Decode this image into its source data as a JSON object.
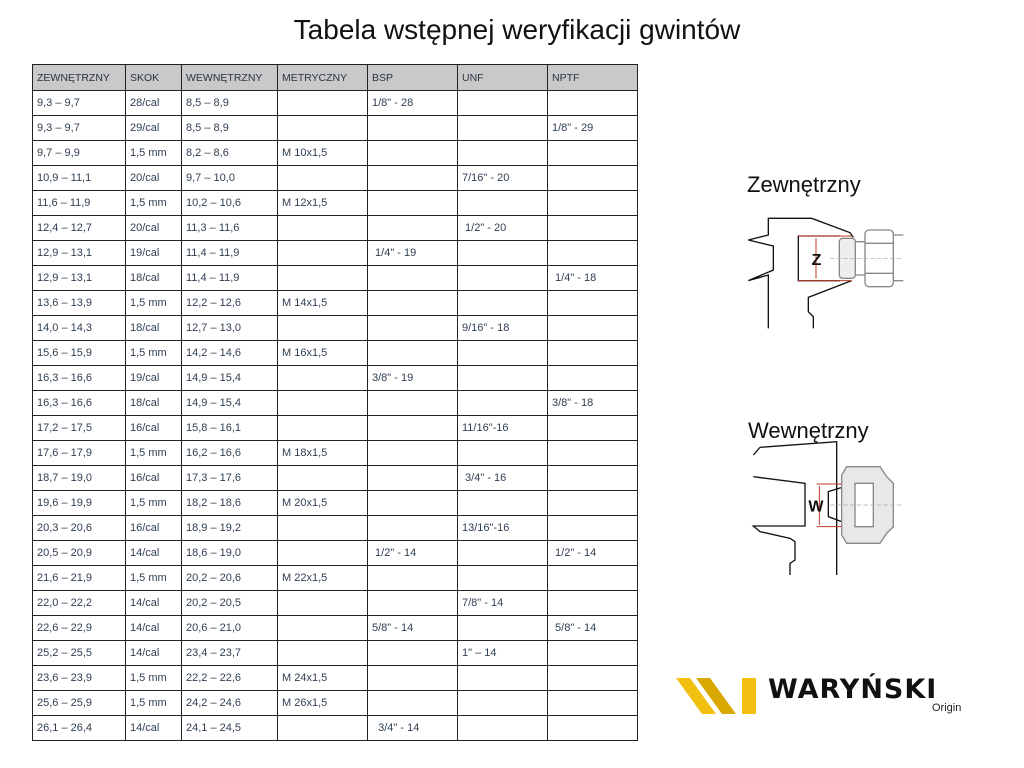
{
  "title": "Tabela wstępnej weryfikacji gwintów",
  "table": {
    "headers": [
      "ZEWNĘTRZNY",
      "SKOK",
      "WEWNĘTRZNY",
      "METRYCZNY",
      "BSP",
      "UNF",
      "NPTF"
    ],
    "rows": [
      [
        "9,3 – 9,7",
        "28/cal",
        "8,5 – 8,9",
        "",
        "1/8\" - 28",
        "",
        ""
      ],
      [
        "9,3 – 9,7",
        "29/cal",
        "8,5 – 8,9",
        "",
        "",
        "",
        "1/8\" - 29"
      ],
      [
        "9,7 – 9,9",
        "1,5 mm",
        "8,2 – 8,6",
        "M 10x1,5",
        "",
        "",
        ""
      ],
      [
        "10,9 – 11,1",
        "20/cal",
        "9,7 – 10,0",
        "",
        "",
        "7/16\" - 20",
        ""
      ],
      [
        "11,6 – 11,9",
        "1,5 mm",
        "10,2 – 10,6",
        "M 12x1,5",
        "",
        "",
        ""
      ],
      [
        "12,4 – 12,7",
        "20/cal",
        "11,3 – 11,6",
        "",
        "",
        " 1/2\" - 20",
        ""
      ],
      [
        "12,9 – 13,1",
        "19/cal",
        "11,4 – 11,9",
        "",
        " 1/4\" - 19",
        "",
        ""
      ],
      [
        "12,9 – 13,1",
        "18/cal",
        "11,4 – 11,9",
        "",
        "",
        "",
        " 1/4\" - 18"
      ],
      [
        "13,6 – 13,9",
        "1,5 mm",
        "12,2 – 12,6",
        "M 14x1,5",
        "",
        "",
        ""
      ],
      [
        "14,0 – 14,3",
        "18/cal",
        "12,7 – 13,0",
        "",
        "",
        "9/16\" - 18",
        ""
      ],
      [
        "15,6 – 15,9",
        "1,5 mm",
        "14,2 – 14,6",
        "M 16x1,5",
        "",
        "",
        ""
      ],
      [
        "16,3 – 16,6",
        "19/cal",
        "14,9 – 15,4",
        "",
        "3/8\" - 19",
        "",
        ""
      ],
      [
        "16,3 – 16,6",
        "18/cal",
        "14,9 – 15,4",
        "",
        "",
        "",
        "3/8\" - 18"
      ],
      [
        "17,2 – 17,5",
        "16/cal",
        "15,8 – 16,1",
        "",
        "",
        "11/16\"-16",
        ""
      ],
      [
        "17,6 – 17,9",
        "1,5 mm",
        "16,2 – 16,6",
        "M 18x1,5",
        "",
        "",
        ""
      ],
      [
        "18,7 – 19,0",
        "16/cal",
        "17,3 – 17,6",
        "",
        "",
        " 3/4\" - 16",
        ""
      ],
      [
        "19,6 – 19,9",
        "1,5 mm",
        "18,2 – 18,6",
        "M 20x1,5",
        "",
        "",
        ""
      ],
      [
        "20,3 – 20,6",
        "16/cal",
        "18,9 – 19,2",
        "",
        "",
        "13/16\"-16",
        ""
      ],
      [
        "20,5 – 20,9",
        "14/cal",
        "18,6 – 19,0",
        "",
        " 1/2\" - 14",
        "",
        " 1/2\" - 14"
      ],
      [
        "21,6 – 21,9",
        "1,5 mm",
        "20,2 – 20,6",
        "M 22x1,5",
        "",
        "",
        ""
      ],
      [
        "22,0 – 22,2",
        "14/cal",
        "20,2 – 20,5",
        "",
        "",
        "7/8\" - 14",
        ""
      ],
      [
        "22,6 – 22,9",
        "14/cal",
        "20,6 – 21,0",
        "",
        "5/8\" - 14",
        "",
        " 5/8\" - 14"
      ],
      [
        "25,2 – 25,5",
        "14/cal",
        "23,4 – 23,7",
        "",
        "",
        "1\" – 14",
        ""
      ],
      [
        "23,6 – 23,9",
        "1,5 mm",
        "22,2 – 22,6",
        "M 24x1,5",
        "",
        "",
        ""
      ],
      [
        "25,6 – 25,9",
        "1,5 mm",
        "24,2 – 24,6",
        "M 26x1,5",
        "",
        "",
        ""
      ],
      [
        "26,1 – 26,4",
        "14/cal",
        "24,1 – 24,5",
        "",
        "  3/4\" - 14",
        "",
        ""
      ]
    ]
  },
  "diagrams": {
    "external_label": "Zewnętrzny",
    "external_marker": "Z",
    "internal_label": "Wewnętrzny",
    "internal_marker": "W",
    "measure_color": "#c0392b"
  },
  "logo": {
    "brand": "WARYŃSKI",
    "sub": "Origin",
    "color": "#f2c012"
  }
}
